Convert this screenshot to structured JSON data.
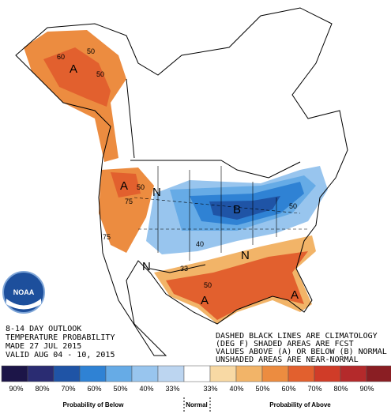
{
  "title_block": [
    "8-14 DAY OUTLOOK",
    "TEMPERATURE PROBABILITY",
    "MADE  27 JUL 2015",
    "VALID  AUG 04 - 10, 2015"
  ],
  "notes": [
    "DASHED BLACK LINES ARE CLIMATOLOGY",
    "(DEG F) SHADED AREAS ARE FCST",
    "VALUES ABOVE (A) OR BELOW (B) NORMAL",
    "UNSHADED AREAS ARE NEAR-NORMAL"
  ],
  "logo": "NOAA",
  "map_labels": [
    "A",
    "60",
    "50",
    "50",
    "A",
    "50",
    "75",
    "N",
    "B",
    "50",
    "40",
    "N",
    "33",
    "50",
    "A",
    "A",
    "N",
    "75"
  ],
  "legend": {
    "below": [
      {
        "label": "90%",
        "color": "#1c1548"
      },
      {
        "label": "80%",
        "color": "#2a2c72"
      },
      {
        "label": "70%",
        "color": "#1f54a6"
      },
      {
        "label": "60%",
        "color": "#2f82d4"
      },
      {
        "label": "50%",
        "color": "#66abe6"
      },
      {
        "label": "40%",
        "color": "#98c5ee"
      },
      {
        "label": "33%",
        "color": "#bcd5f0"
      }
    ],
    "above": [
      {
        "label": "33%",
        "color": "#f8d9a4"
      },
      {
        "label": "40%",
        "color": "#f2b468"
      },
      {
        "label": "50%",
        "color": "#ec8c40"
      },
      {
        "label": "60%",
        "color": "#e2602e"
      },
      {
        "label": "70%",
        "color": "#d03c28"
      },
      {
        "label": "80%",
        "color": "#b42a2b"
      },
      {
        "label": "90%",
        "color": "#8a1e23"
      }
    ],
    "below_title": "Probability of Below",
    "normal": "Normal",
    "above_title": "Probability of Above"
  }
}
